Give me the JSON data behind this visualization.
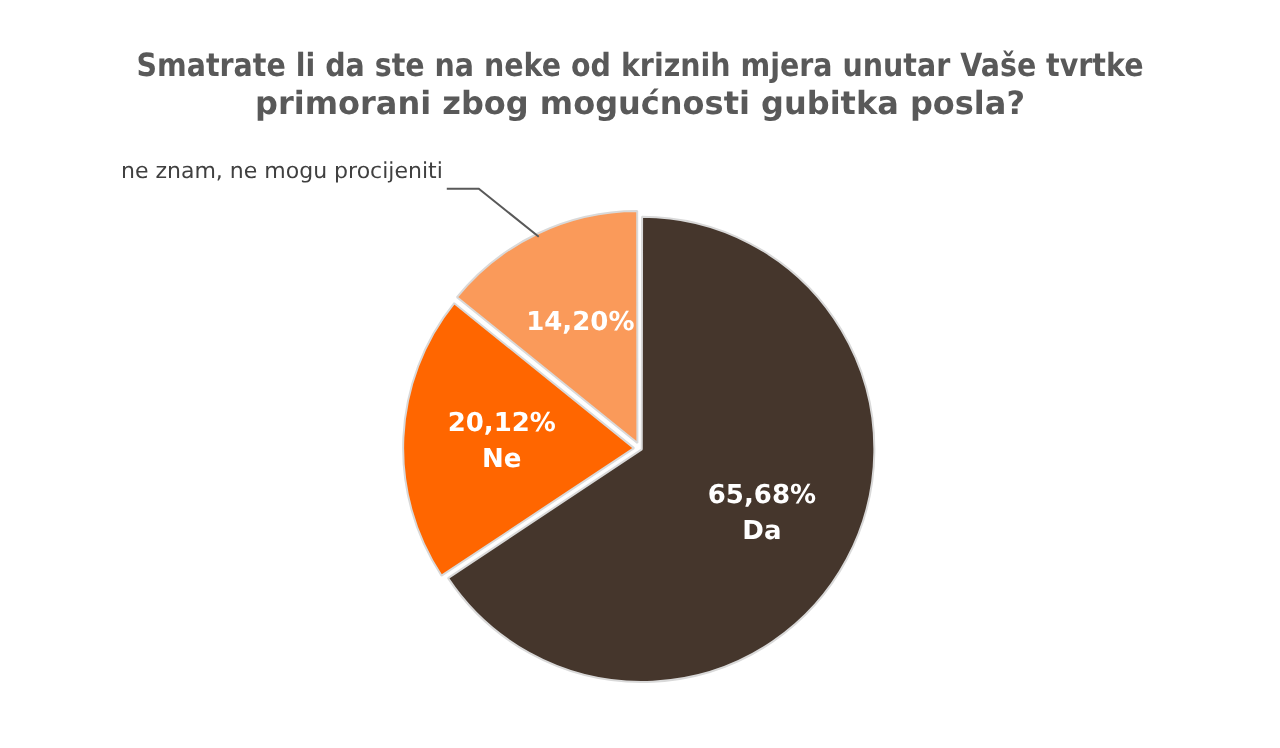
{
  "chart_data": {
    "type": "pie",
    "title": "Smatrate li da ste na neke od kriznih mjera unutar Vaše tvrtke primorani zbog mogućnosti gubitka posla?",
    "categories": [
      "Da",
      "Ne",
      "ne znam, ne mogu procijeniti"
    ],
    "values": [
      65.68,
      20.12,
      14.2
    ],
    "value_labels": [
      "65,68%",
      "20,12%",
      "14,20%"
    ],
    "colors": [
      "#45362c",
      "#ff6600",
      "#fa9a5a"
    ],
    "legend": false
  }
}
